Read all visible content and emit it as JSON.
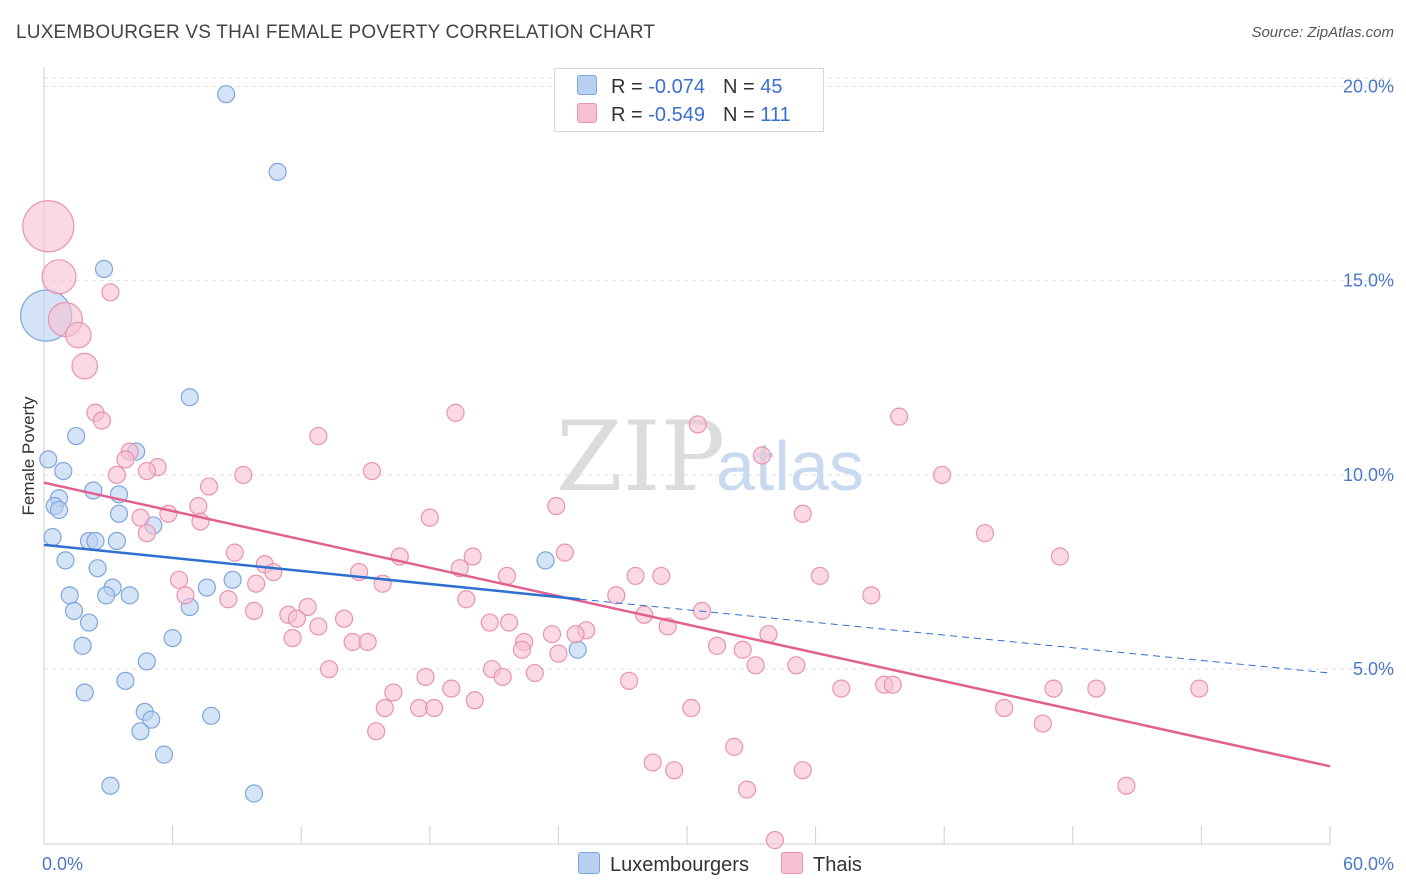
{
  "header": {
    "title": "LUXEMBOURGER VS THAI FEMALE POVERTY CORRELATION CHART",
    "source": "Source: ZipAtlas.com"
  },
  "watermark": {
    "zip": "ZIP",
    "atlas": "atlas"
  },
  "legend": {
    "rows": [
      {
        "r_label": "R =",
        "r_value": "-0.074",
        "n_label": "N =",
        "n_value": "45"
      },
      {
        "r_label": "R =",
        "r_value": "-0.549",
        "n_label": "N =",
        "n_value": "111"
      }
    ]
  },
  "bottom_legend": {
    "lux": "Luxembourgers",
    "thai": "Thais"
  },
  "colors": {
    "lux_fill": "#b9d1f1",
    "lux_stroke": "#7fa6dc",
    "lux_line": "#2f6fd0",
    "thai_fill": "#f7bfd2",
    "thai_stroke": "#e993b1",
    "thai_line": "#e0608e",
    "tick_text": "#4a78c8",
    "grid": "#e2e2e2"
  },
  "chart_data": {
    "type": "scatter",
    "ylabel": "Female Poverty",
    "x_tick_labels": [
      "0.0%",
      "60.0%"
    ],
    "y_tick_labels": [
      "20.0%",
      "15.0%",
      "10.0%",
      "5.0%"
    ],
    "y_ticks": [
      20,
      15,
      10,
      5
    ],
    "xlim": [
      0,
      60
    ],
    "ylim": [
      0.5,
      20.5
    ],
    "grid": "horizontal dashed",
    "legend_placement": "top-center and bottom",
    "series": [
      {
        "name": "Luxembourgers",
        "r": -0.074,
        "n": 45,
        "trend": {
          "x": [
            0,
            25
          ],
          "y": [
            8.2,
            6.8
          ]
        },
        "trend_extension": {
          "x": [
            25,
            60
          ],
          "y": [
            6.8,
            4.9
          ]
        },
        "points": [
          [
            0.1,
            14.1,
            3
          ],
          [
            8.5,
            19.8,
            1
          ],
          [
            10.9,
            17.8,
            1
          ],
          [
            2.8,
            15.3,
            1
          ],
          [
            6.8,
            12.0,
            1
          ],
          [
            0.2,
            10.4,
            1
          ],
          [
            1.5,
            11.0,
            1
          ],
          [
            4.3,
            10.6,
            1
          ],
          [
            0.9,
            10.1,
            1
          ],
          [
            2.3,
            9.6,
            1
          ],
          [
            0.7,
            9.4,
            1
          ],
          [
            3.5,
            9.5,
            1
          ],
          [
            0.5,
            9.2,
            1
          ],
          [
            0.7,
            9.1,
            1
          ],
          [
            3.5,
            9.0,
            1
          ],
          [
            5.1,
            8.7,
            1
          ],
          [
            0.4,
            8.4,
            1
          ],
          [
            2.1,
            8.3,
            1
          ],
          [
            2.4,
            8.3,
            1
          ],
          [
            3.4,
            8.3,
            1
          ],
          [
            1.0,
            7.8,
            1
          ],
          [
            2.5,
            7.6,
            1
          ],
          [
            8.8,
            7.3,
            1
          ],
          [
            23.4,
            7.8,
            1
          ],
          [
            3.2,
            7.1,
            1
          ],
          [
            7.6,
            7.1,
            1
          ],
          [
            1.2,
            6.9,
            1
          ],
          [
            2.9,
            6.9,
            1
          ],
          [
            4.0,
            6.9,
            1
          ],
          [
            6.8,
            6.6,
            1
          ],
          [
            1.4,
            6.5,
            1
          ],
          [
            2.1,
            6.2,
            1
          ],
          [
            6.0,
            5.8,
            1
          ],
          [
            1.8,
            5.6,
            1
          ],
          [
            24.9,
            5.5,
            1
          ],
          [
            4.8,
            5.2,
            1
          ],
          [
            3.8,
            4.7,
            1
          ],
          [
            1.9,
            4.4,
            1
          ],
          [
            4.7,
            3.9,
            1
          ],
          [
            7.8,
            3.8,
            1
          ],
          [
            5.0,
            3.7,
            1
          ],
          [
            4.5,
            3.4,
            1
          ],
          [
            5.6,
            2.8,
            1
          ],
          [
            3.1,
            2.0,
            1
          ],
          [
            9.8,
            1.8,
            1
          ]
        ]
      },
      {
        "name": "Thais",
        "r": -0.549,
        "n": 111,
        "trend": {
          "x": [
            0,
            60
          ],
          "y": [
            9.8,
            2.5
          ]
        },
        "points": [
          [
            0.2,
            16.4,
            3
          ],
          [
            0.7,
            15.1,
            2
          ],
          [
            1.0,
            14.0,
            2
          ],
          [
            3.1,
            14.7,
            1
          ],
          [
            1.6,
            13.6,
            1.5
          ],
          [
            1.9,
            12.8,
            1.5
          ],
          [
            2.4,
            11.6,
            1
          ],
          [
            2.7,
            11.4,
            1
          ],
          [
            12.8,
            11.0,
            1
          ],
          [
            19.2,
            11.6,
            1
          ],
          [
            30.5,
            11.3,
            1
          ],
          [
            39.9,
            11.5,
            1
          ],
          [
            4.0,
            10.6,
            1
          ],
          [
            3.8,
            10.4,
            1
          ],
          [
            5.3,
            10.2,
            1
          ],
          [
            4.8,
            10.1,
            1
          ],
          [
            3.4,
            10.0,
            1
          ],
          [
            9.3,
            10.0,
            1
          ],
          [
            15.3,
            10.1,
            1
          ],
          [
            33.5,
            10.5,
            1
          ],
          [
            41.9,
            10.0,
            1
          ],
          [
            7.7,
            9.7,
            1
          ],
          [
            7.2,
            9.2,
            1
          ],
          [
            5.8,
            9.0,
            1
          ],
          [
            4.5,
            8.9,
            1
          ],
          [
            7.3,
            8.8,
            1
          ],
          [
            18.0,
            8.9,
            1
          ],
          [
            23.9,
            9.2,
            1
          ],
          [
            35.4,
            9.0,
            1
          ],
          [
            4.8,
            8.5,
            1
          ],
          [
            8.9,
            8.0,
            1
          ],
          [
            16.6,
            7.9,
            1
          ],
          [
            20.0,
            7.9,
            1
          ],
          [
            24.3,
            8.0,
            1
          ],
          [
            43.9,
            8.5,
            1
          ],
          [
            47.4,
            7.9,
            1
          ],
          [
            10.3,
            7.7,
            1
          ],
          [
            10.7,
            7.5,
            1
          ],
          [
            14.7,
            7.5,
            1
          ],
          [
            19.4,
            7.6,
            1
          ],
          [
            21.6,
            7.4,
            1
          ],
          [
            27.6,
            7.4,
            1
          ],
          [
            28.8,
            7.4,
            1
          ],
          [
            36.2,
            7.4,
            1
          ],
          [
            6.3,
            7.3,
            1
          ],
          [
            9.9,
            7.2,
            1
          ],
          [
            15.8,
            7.2,
            1
          ],
          [
            6.6,
            6.9,
            1
          ],
          [
            8.6,
            6.8,
            1
          ],
          [
            12.3,
            6.6,
            1
          ],
          [
            19.7,
            6.8,
            1
          ],
          [
            26.7,
            6.9,
            1
          ],
          [
            38.6,
            6.9,
            1
          ],
          [
            9.8,
            6.5,
            1
          ],
          [
            11.4,
            6.4,
            1
          ],
          [
            11.8,
            6.3,
            1
          ],
          [
            14.0,
            6.3,
            1
          ],
          [
            30.7,
            6.5,
            1
          ],
          [
            28.0,
            6.4,
            1
          ],
          [
            12.8,
            6.1,
            1
          ],
          [
            20.8,
            6.2,
            1
          ],
          [
            21.7,
            6.2,
            1
          ],
          [
            25.3,
            6.0,
            1
          ],
          [
            29.1,
            6.1,
            1
          ],
          [
            11.6,
            5.8,
            1
          ],
          [
            14.4,
            5.7,
            1
          ],
          [
            15.1,
            5.7,
            1
          ],
          [
            22.4,
            5.7,
            1
          ],
          [
            23.7,
            5.9,
            1
          ],
          [
            24.8,
            5.9,
            1
          ],
          [
            31.4,
            5.6,
            1
          ],
          [
            32.6,
            5.5,
            1
          ],
          [
            33.8,
            5.9,
            1
          ],
          [
            22.3,
            5.5,
            1
          ],
          [
            24.0,
            5.4,
            1
          ],
          [
            13.3,
            5.0,
            1
          ],
          [
            20.9,
            5.0,
            1
          ],
          [
            22.9,
            4.9,
            1
          ],
          [
            33.2,
            5.1,
            1
          ],
          [
            35.1,
            5.1,
            1
          ],
          [
            17.8,
            4.8,
            1
          ],
          [
            21.4,
            4.8,
            1
          ],
          [
            27.3,
            4.7,
            1
          ],
          [
            39.2,
            4.6,
            1
          ],
          [
            39.6,
            4.6,
            1
          ],
          [
            16.3,
            4.4,
            1
          ],
          [
            19.0,
            4.5,
            1
          ],
          [
            37.2,
            4.5,
            1
          ],
          [
            47.1,
            4.5,
            1
          ],
          [
            49.1,
            4.5,
            1
          ],
          [
            53.9,
            4.5,
            1
          ],
          [
            15.9,
            4.0,
            1
          ],
          [
            17.5,
            4.0,
            1
          ],
          [
            18.2,
            4.0,
            1
          ],
          [
            20.1,
            4.2,
            1
          ],
          [
            30.2,
            4.0,
            1
          ],
          [
            44.8,
            4.0,
            1
          ],
          [
            46.6,
            3.6,
            1
          ],
          [
            15.5,
            3.4,
            1
          ],
          [
            32.2,
            3.0,
            1
          ],
          [
            28.4,
            2.6,
            1
          ],
          [
            29.4,
            2.4,
            1
          ],
          [
            35.4,
            2.4,
            1
          ],
          [
            32.8,
            1.9,
            1
          ],
          [
            34.1,
            0.6,
            1
          ],
          [
            50.5,
            2.0,
            1
          ]
        ]
      }
    ]
  }
}
